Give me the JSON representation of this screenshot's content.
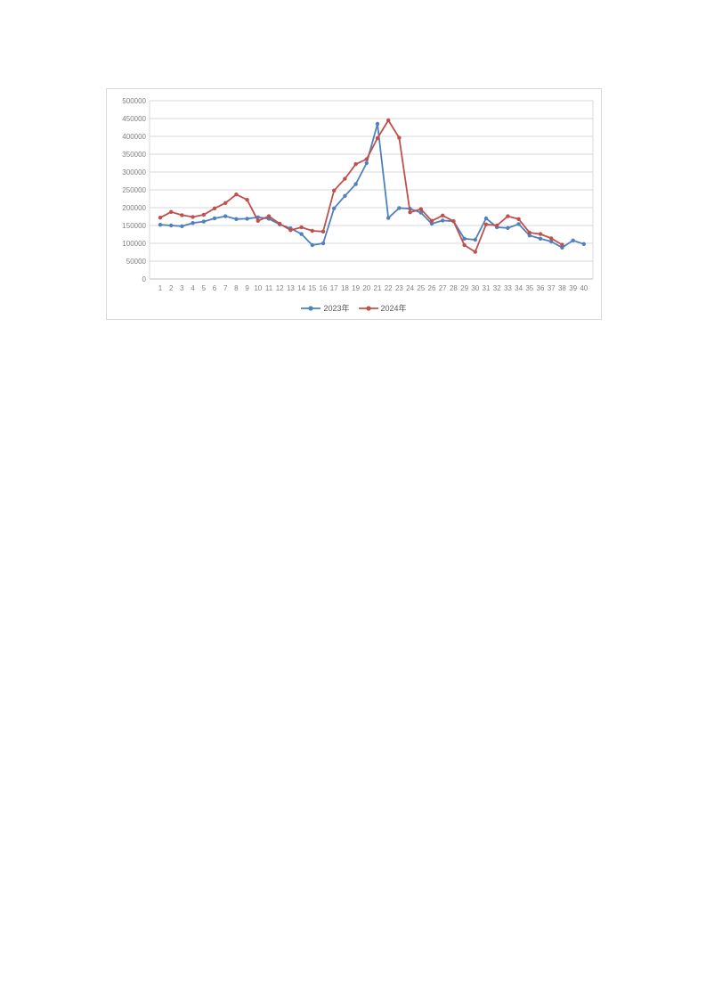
{
  "chart_data": {
    "type": "line",
    "title": "",
    "xlabel": "",
    "ylabel": "",
    "categories": [
      1,
      2,
      3,
      4,
      5,
      6,
      7,
      8,
      9,
      10,
      11,
      12,
      13,
      14,
      15,
      16,
      17,
      18,
      19,
      20,
      21,
      22,
      23,
      24,
      25,
      26,
      27,
      28,
      29,
      30,
      31,
      32,
      33,
      34,
      35,
      36,
      37,
      38,
      39,
      40
    ],
    "series": [
      {
        "name": "2023年",
        "color": "#4F81BD",
        "values": [
          152000,
          150000,
          148000,
          157000,
          161000,
          170000,
          176000,
          168000,
          169000,
          173000,
          169000,
          153000,
          142000,
          126000,
          95000,
          100000,
          198000,
          233000,
          266000,
          325000,
          435000,
          171000,
          199000,
          197000,
          186000,
          155000,
          164000,
          162000,
          113000,
          110000,
          170000,
          145000,
          143000,
          154000,
          122000,
          113000,
          105000,
          88000,
          108000,
          98000
        ]
      },
      {
        "name": "2024年",
        "color": "#C0504D",
        "values": [
          172000,
          188000,
          179000,
          174000,
          180000,
          198000,
          213000,
          237000,
          222000,
          163000,
          176000,
          155000,
          137000,
          145000,
          135000,
          133000,
          248000,
          281000,
          322000,
          336000,
          395000,
          445000,
          396000,
          187000,
          196000,
          163000,
          178000,
          162000,
          95000,
          76000,
          153000,
          150000,
          176000,
          168000,
          130000,
          126000,
          114000,
          96000,
          null,
          null
        ]
      }
    ],
    "ylim": [
      0,
      500000
    ],
    "y_ticks": [
      0,
      50000,
      100000,
      150000,
      200000,
      250000,
      300000,
      350000,
      400000,
      450000,
      500000
    ],
    "grid": "horizontal",
    "legend_position": "bottom",
    "gridline_color": "#d9d9d9",
    "axis_line_color": "#bfbfbf",
    "axis_label_color": "#808080"
  }
}
